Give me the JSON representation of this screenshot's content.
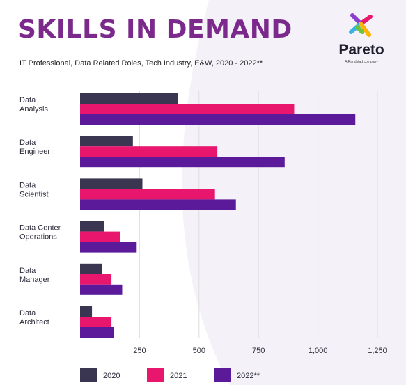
{
  "header": {
    "title": "SKILLS IN DEMAND",
    "subtitle": "IT Professional, Data Related Roles, Tech Industry, E&W, 2020 - 2022**"
  },
  "logo": {
    "name": "Pareto",
    "tagline": "A Randstad company"
  },
  "colors": {
    "title": "#7b2a8c",
    "s2020": "#3a3551",
    "s2021": "#e8166c",
    "s2022": "#5a1a9a",
    "grid": "#dddddd",
    "background_arc": "#f4f2f8"
  },
  "chart_data": {
    "type": "bar",
    "orientation": "horizontal",
    "categories": [
      [
        "Data",
        "Analysis"
      ],
      [
        "Data",
        "Engineer"
      ],
      [
        "Data",
        "Scientist"
      ],
      [
        "Data Center",
        "Operations"
      ],
      [
        "Data",
        "Manager"
      ],
      [
        "Data",
        "Architect"
      ]
    ],
    "series": [
      {
        "name": "2020",
        "values": [
          412,
          222,
          262,
          102,
          92,
          50
        ]
      },
      {
        "name": "2021",
        "values": [
          900,
          577,
          567,
          168,
          132,
          132
        ]
      },
      {
        "name": "2022**",
        "values": [
          1157,
          860,
          655,
          238,
          177,
          142
        ]
      }
    ],
    "xticks": [
      "250",
      "500",
      "750",
      "1,000",
      "1,250"
    ],
    "xtick_values": [
      250,
      500,
      750,
      1000,
      1250
    ],
    "xlim": [
      0,
      1250
    ],
    "grid": true,
    "legend_position": "bottom"
  }
}
